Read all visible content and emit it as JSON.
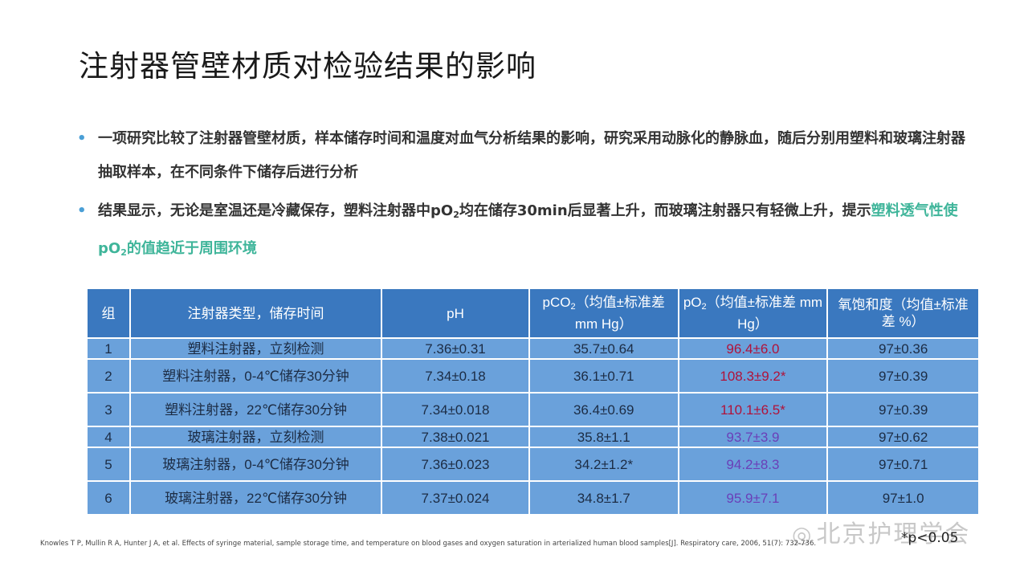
{
  "title": "注射器管壁材质对检验结果的影响",
  "bullets": [
    {
      "text": "一项研究比较了注射器管壁材质，样本储存时间和温度对血气分析结果的影响，研究采用动脉化的静脉血，随后分别用塑料和玻璃注射器抽取样本，在不同条件下储存后进行分析"
    },
    {
      "pre": "结果显示，无论是室温还是冷藏保存，塑料注射器中pO",
      "sub": "2",
      "post": "均在储存30min后显著上升，而玻璃注射器只有轻微上升，提示",
      "hl_pre": "塑料透气性使pO",
      "hl_sub": "2",
      "hl_post": "的值趋近于周围环境"
    }
  ],
  "table": {
    "headers": {
      "group": "组",
      "type": "注射器类型，储存时间",
      "ph": "pH",
      "pco2_pre": "pCO",
      "pco2_sub": "2",
      "pco2_post": "（均值±标准差 mm Hg）",
      "po2_pre": "pO",
      "po2_sub": "2",
      "po2_post": "（均值±标准差 mm Hg）",
      "sat": "氧饱和度（均值±标准差 %）"
    },
    "rows": [
      {
        "group": "1",
        "type": "塑料注射器，立刻检测",
        "ph": "7.36±0.31",
        "pco2": "35.7±0.64",
        "po2": "96.4±6.0",
        "sat": "97±0.36"
      },
      {
        "group": "2",
        "type": "塑料注射器，0-4℃储存30分钟",
        "ph": "7.34±0.18",
        "pco2": "36.1±0.71",
        "po2": "108.3±9.2*",
        "sat": "97±0.39"
      },
      {
        "group": "3",
        "type": "塑料注射器，22℃储存30分钟",
        "ph": "7.34±0.018",
        "pco2": "36.4±0.69",
        "po2": "110.1±6.5*",
        "sat": "97±0.39"
      },
      {
        "group": "4",
        "type": "玻璃注射器，立刻检测",
        "ph": "7.38±0.021",
        "pco2": "35.8±1.1",
        "po2": "93.7±3.9",
        "sat": "97±0.62"
      },
      {
        "group": "5",
        "type": "玻璃注射器，0-4℃储存30分钟",
        "ph": "7.36±0.023",
        "pco2": "34.2±1.2*",
        "po2": "94.2±8.3",
        "sat": "97±0.71"
      },
      {
        "group": "6",
        "type": "玻璃注射器，22℃储存30分钟",
        "ph": "7.37±0.024",
        "pco2": "34.8±1.7",
        "po2": "95.9±7.1",
        "sat": "97±1.0"
      }
    ]
  },
  "reference": "Knowles T P, Mullin R A, Hunter J A, et al. Effects of syringe material, sample storage time, and temperature on blood gases and oxygen saturation in arterialized human blood samples[J]. Respiratory care, 2006, 51(7): 732-736.",
  "note": "*p<0.05",
  "watermark": "北京护理学会",
  "colors": {
    "header_bg": "#3a78bf",
    "cell_bg": "#6aa1db",
    "highlight": "#3fb59a",
    "significant": "#b0123a",
    "glass_po2": "#6a3fb8"
  }
}
